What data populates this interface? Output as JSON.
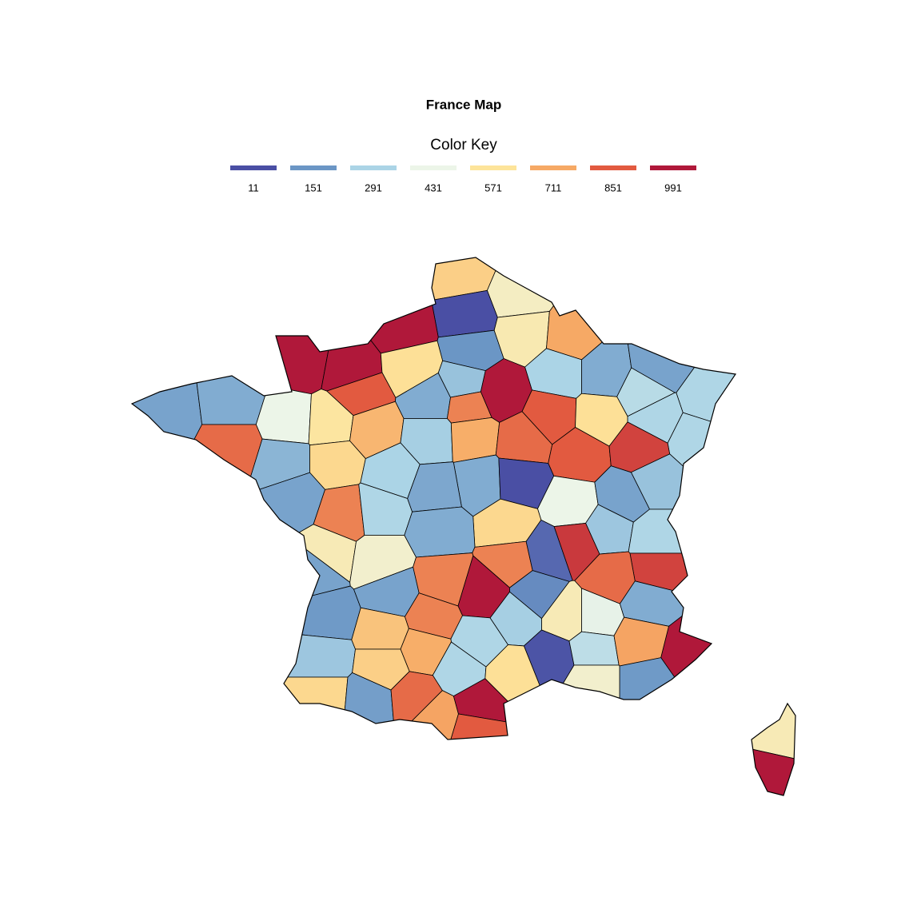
{
  "chart_data": {
    "type": "choropleth",
    "title": "France Map",
    "legend_title": "Color Key",
    "legend": {
      "breaks": [
        11,
        151,
        291,
        431,
        571,
        711,
        851,
        991
      ],
      "colors": [
        "#4a4fa4",
        "#6b96c5",
        "#abd4e6",
        "#ecf5e8",
        "#fde49a",
        "#f6a965",
        "#e25a40",
        "#b0183a"
      ]
    },
    "values": [
      620,
      500,
      11,
      991,
      991,
      991,
      151,
      530,
      711,
      291,
      200,
      180,
      300,
      320,
      300,
      300,
      580,
      851,
      200,
      250,
      780,
      991,
      851,
      580,
      180,
      200,
      430,
      560,
      680,
      820,
      220,
      600,
      280,
      700,
      820,
      851,
      900,
      250,
      180,
      290,
      780,
      200,
      11,
      431,
      180,
      520,
      300,
      190,
      600,
      260,
      300,
      180,
      480,
      200,
      780,
      60,
      920,
      900,
      820,
      160,
      180,
      780,
      991,
      130,
      520,
      420,
      200,
      260,
      650,
      780,
      300,
      280,
      20,
      330,
      720,
      991,
      160,
      480,
      700,
      300,
      580,
      600,
      170,
      620,
      820,
      720,
      991,
      851,
      520,
      991
    ]
  }
}
